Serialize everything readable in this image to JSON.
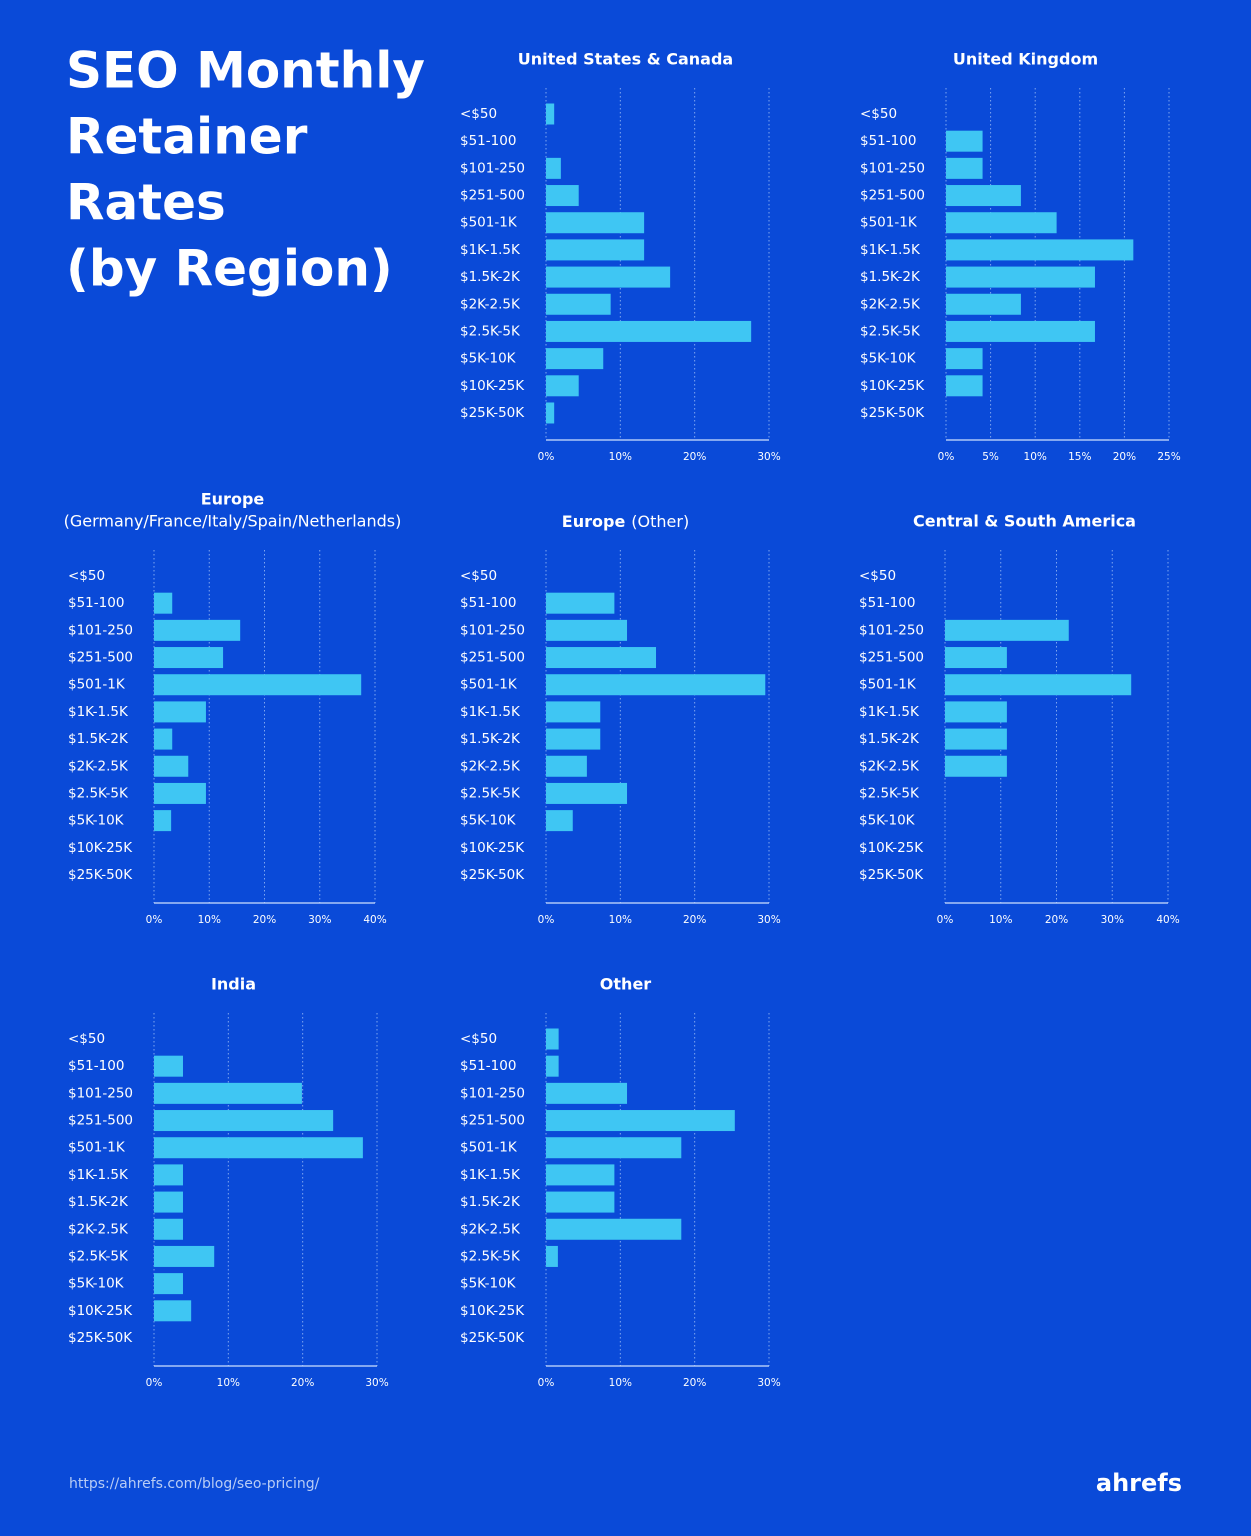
{
  "title_lines": [
    "SEO Monthly",
    "Retainer",
    "Rates",
    "(by Region)"
  ],
  "source_url": "https://ahrefs.com/blog/seo-pricing/",
  "brand": "ahrefs",
  "chart_data": [
    {
      "type": "barh",
      "title": "United States & Canada",
      "categories": [
        "<$50",
        "$51-100",
        "$101-250",
        "$251-500",
        "$501-1K",
        "$1K-1.5K",
        "$1.5K-2K",
        "$2K-2.5K",
        "$2.5K-5K",
        "$5K-10K",
        "$10K-25K",
        "$25K-50K"
      ],
      "values": [
        1.1,
        0,
        2.0,
        4.4,
        13.2,
        13.2,
        16.7,
        8.7,
        27.6,
        7.7,
        4.4,
        1.1
      ],
      "color": "#3fc6f3",
      "xlim": [
        0,
        30
      ],
      "xticks": [
        {
          "value": 0,
          "label": "0%"
        },
        {
          "value": 10,
          "label": "10%"
        },
        {
          "value": 20,
          "label": "20%"
        },
        {
          "value": 30,
          "label": "30%"
        }
      ],
      "grid": true
    },
    {
      "type": "barh",
      "title": "United Kingdom",
      "categories": [
        "<$50",
        "$51-100",
        "$101-250",
        "$251-500",
        "$501-1K",
        "$1K-1.5K",
        "$1.5K-2K",
        "$2K-2.5K",
        "$2.5K-5K",
        "$5K-10K",
        "$10K-25K",
        "$25K-50K"
      ],
      "values": [
        0,
        4.1,
        4.1,
        8.4,
        12.4,
        21.0,
        16.7,
        8.4,
        16.7,
        4.1,
        4.1,
        0
      ],
      "color": "#3fc6f3",
      "xlim": [
        0,
        25
      ],
      "xticks": [
        {
          "value": 0,
          "label": "0%"
        },
        {
          "value": 5,
          "label": "5%"
        },
        {
          "value": 10,
          "label": "10%"
        },
        {
          "value": 15,
          "label": "15%"
        },
        {
          "value": 20,
          "label": "20%"
        },
        {
          "value": 25,
          "label": "25%"
        }
      ],
      "grid": true
    },
    {
      "type": "barh",
      "title": "Europe",
      "subtitle": "(Germany/France/Italy/Spain/Netherlands)",
      "categories": [
        "<$50",
        "$51-100",
        "$101-250",
        "$251-500",
        "$501-1K",
        "$1K-1.5K",
        "$1.5K-2K",
        "$2K-2.5K",
        "$2.5K-5K",
        "$5K-10K",
        "$10K-25K",
        "$25K-50K"
      ],
      "values": [
        0,
        3.3,
        15.6,
        12.5,
        37.5,
        9.4,
        3.3,
        6.2,
        9.4,
        3.1,
        0,
        0
      ],
      "color": "#3fc6f3",
      "xlim": [
        0,
        40
      ],
      "xticks": [
        {
          "value": 0,
          "label": "0%"
        },
        {
          "value": 10,
          "label": "10%"
        },
        {
          "value": 20,
          "label": "20%"
        },
        {
          "value": 30,
          "label": "30%"
        },
        {
          "value": 40,
          "label": "40%"
        }
      ],
      "grid": true
    },
    {
      "type": "barh",
      "title": "Europe",
      "subtitle": "(Other)",
      "categories": [
        "<$50",
        "$51-100",
        "$101-250",
        "$251-500",
        "$501-1K",
        "$1K-1.5K",
        "$1.5K-2K",
        "$2K-2.5K",
        "$2.5K-5K",
        "$5K-10K",
        "$10K-25K",
        "$25K-50K"
      ],
      "values": [
        0,
        9.2,
        10.9,
        14.8,
        29.5,
        7.3,
        7.3,
        5.5,
        10.9,
        3.6,
        0,
        0
      ],
      "color": "#3fc6f3",
      "xlim": [
        0,
        30
      ],
      "xticks": [
        {
          "value": 0,
          "label": "0%"
        },
        {
          "value": 10,
          "label": "10%"
        },
        {
          "value": 20,
          "label": "20%"
        },
        {
          "value": 30,
          "label": "30%"
        }
      ],
      "grid": true
    },
    {
      "type": "barh",
      "title": "Central & South America",
      "categories": [
        "<$50",
        "$51-100",
        "$101-250",
        "$251-500",
        "$501-1K",
        "$1K-1.5K",
        "$1.5K-2K",
        "$2K-2.5K",
        "$2.5K-5K",
        "$5K-10K",
        "$10K-25K",
        "$25K-50K"
      ],
      "values": [
        0,
        0,
        22.2,
        11.1,
        33.4,
        11.1,
        11.1,
        11.1,
        0,
        0,
        0,
        0
      ],
      "color": "#3fc6f3",
      "xlim": [
        0,
        40
      ],
      "xticks": [
        {
          "value": 0,
          "label": "0%"
        },
        {
          "value": 10,
          "label": "10%"
        },
        {
          "value": 20,
          "label": "20%"
        },
        {
          "value": 30,
          "label": "30%"
        },
        {
          "value": 40,
          "label": "40%"
        }
      ],
      "grid": true
    },
    {
      "type": "barh",
      "title": "India",
      "categories": [
        "<$50",
        "$51-100",
        "$101-250",
        "$251-500",
        "$501-1K",
        "$1K-1.5K",
        "$1.5K-2K",
        "$2K-2.5K",
        "$2.5K-5K",
        "$5K-10K",
        "$10K-25K",
        "$25K-50K"
      ],
      "values": [
        0,
        3.9,
        19.9,
        24.1,
        28.1,
        3.9,
        3.9,
        3.9,
        8.1,
        3.9,
        5.0,
        0
      ],
      "color": "#3fc6f3",
      "xlim": [
        0,
        30
      ],
      "xticks": [
        {
          "value": 0,
          "label": "0%"
        },
        {
          "value": 10,
          "label": "10%"
        },
        {
          "value": 20,
          "label": "20%"
        },
        {
          "value": 30,
          "label": "30%"
        }
      ],
      "grid": true
    },
    {
      "type": "barh",
      "title": "Other",
      "categories": [
        "<$50",
        "$51-100",
        "$101-250",
        "$251-500",
        "$501-1K",
        "$1K-1.5K",
        "$1.5K-2K",
        "$2K-2.5K",
        "$2.5K-5K",
        "$5K-10K",
        "$10K-25K",
        "$25K-50K"
      ],
      "values": [
        1.7,
        1.7,
        10.9,
        25.4,
        18.2,
        9.2,
        9.2,
        18.2,
        1.6,
        0,
        0,
        0
      ],
      "color": "#3fc6f3",
      "xlim": [
        0,
        30
      ],
      "xticks": [
        {
          "value": 0,
          "label": "0%"
        },
        {
          "value": 10,
          "label": "10%"
        },
        {
          "value": 20,
          "label": "20%"
        },
        {
          "value": 30,
          "label": "30%"
        }
      ],
      "grid": true
    }
  ]
}
